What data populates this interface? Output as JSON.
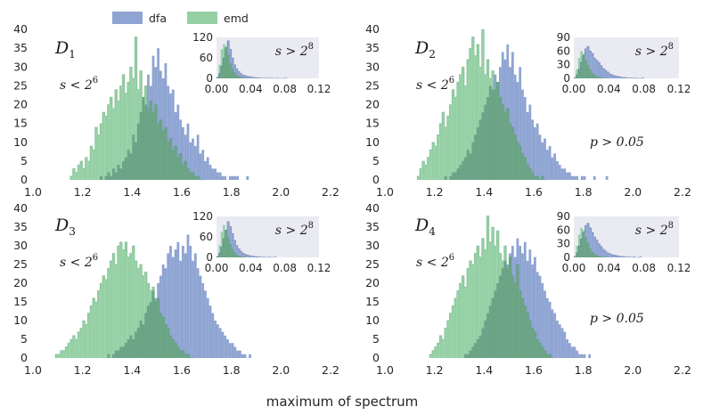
{
  "chart_data": {
    "type": "histogram",
    "xlabel": "maximum of spectrum",
    "legend": [
      {
        "name": "dfa",
        "color": "#8ea4d2"
      },
      {
        "name": "emd",
        "color": "#94d0a4"
      }
    ],
    "colors": {
      "dfa": "#8ea4d2",
      "emd": "#94d0a4",
      "overlap": "#6aa484",
      "inset_bg": "#eaeaf2"
    },
    "x_ticks": [
      "1.0",
      "1.2",
      "1.4",
      "1.6",
      "1.8",
      "2.0",
      "2.2"
    ],
    "y_ticks": [
      "0",
      "5",
      "10",
      "15",
      "20",
      "25",
      "30",
      "35",
      "40"
    ],
    "xlim": [
      1.0,
      2.2
    ],
    "ylim": [
      0,
      40
    ],
    "panels": [
      {
        "name": "D1",
        "label_base": "D",
        "label_sub": "1",
        "scale_text": "s < 2",
        "scale_exp": "6",
        "pvalue_text": "",
        "bin_start": 1.15,
        "bin_width": 0.01,
        "emd": [
          1,
          3,
          2,
          4,
          5,
          3,
          6,
          5,
          9,
          8,
          14,
          12,
          15,
          18,
          17,
          20,
          22,
          19,
          24,
          21,
          25,
          28,
          23,
          26,
          30,
          27,
          38,
          24,
          29,
          22,
          25,
          19,
          21,
          18,
          20,
          15,
          16,
          13,
          14,
          10,
          11,
          8,
          9,
          6,
          7,
          4,
          5,
          3,
          2,
          2,
          1,
          1,
          0,
          0
        ],
        "dfa": [
          0,
          0,
          0,
          0,
          0,
          0,
          0,
          0,
          0,
          0,
          0,
          0,
          1,
          0,
          1,
          2,
          1,
          3,
          2,
          4,
          3,
          5,
          6,
          8,
          7,
          12,
          10,
          15,
          18,
          22,
          20,
          28,
          25,
          33,
          30,
          35,
          29,
          27,
          31,
          25,
          23,
          24,
          18,
          20,
          16,
          14,
          12,
          15,
          10,
          11,
          9,
          12,
          7,
          8,
          5,
          6,
          4,
          3,
          3,
          2,
          2,
          1,
          1,
          0,
          1,
          1,
          1,
          1,
          0,
          0,
          0,
          1,
          0
        ],
        "inset": {
          "scale_text": "s > 2",
          "scale_exp": "8",
          "x_ticks": [
            "0.00",
            "0.04",
            "0.08",
            "0.12"
          ],
          "y_ticks": [
            "0",
            "60",
            "120"
          ],
          "xlim": [
            0,
            0.12
          ],
          "ylim": [
            0,
            120
          ],
          "bin_start": 0.0,
          "bin_width": 0.0025,
          "emd": [
            5,
            40,
            85,
            100,
            95,
            70,
            45,
            30,
            18,
            10,
            6,
            4,
            2,
            1,
            1,
            0
          ],
          "dfa": [
            2,
            15,
            35,
            60,
            90,
            110,
            85,
            60,
            40,
            28,
            20,
            14,
            10,
            8,
            6,
            5,
            4,
            3,
            2,
            2,
            1,
            1,
            1,
            1,
            0,
            1,
            0,
            0,
            1,
            0,
            0,
            0,
            1
          ]
        }
      },
      {
        "name": "D2",
        "label_base": "D",
        "label_sub": "2",
        "scale_text": "s < 2",
        "scale_exp": "6",
        "pvalue_text": "p > 0.05",
        "bin_start": 1.13,
        "bin_width": 0.01,
        "emd": [
          1,
          3,
          5,
          4,
          6,
          8,
          10,
          9,
          12,
          15,
          18,
          14,
          17,
          20,
          24,
          22,
          26,
          28,
          30,
          25,
          32,
          35,
          38,
          33,
          36,
          30,
          40,
          28,
          32,
          27,
          29,
          24,
          26,
          22,
          20,
          18,
          19,
          15,
          14,
          12,
          10,
          9,
          7,
          6,
          4,
          3,
          2,
          1,
          1,
          0,
          1,
          0
        ],
        "dfa": [
          0,
          0,
          0,
          0,
          0,
          0,
          0,
          0,
          0,
          0,
          0,
          1,
          0,
          1,
          2,
          2,
          3,
          4,
          5,
          6,
          8,
          7,
          10,
          12,
          14,
          16,
          18,
          20,
          22,
          25,
          24,
          28,
          26,
          30,
          34,
          32,
          36,
          30,
          34,
          28,
          26,
          30,
          24,
          22,
          18,
          20,
          16,
          14,
          15,
          12,
          10,
          11,
          8,
          9,
          6,
          7,
          5,
          4,
          3,
          3,
          2,
          2,
          1,
          1,
          1,
          0,
          1,
          1,
          0,
          0,
          0,
          1,
          0,
          0,
          0,
          0,
          1
        ],
        "inset": {
          "scale_text": "s > 2",
          "scale_exp": "8",
          "x_ticks": [
            "0.00",
            "0.04",
            "0.08",
            "0.12"
          ],
          "y_ticks": [
            "0",
            "30",
            "60",
            "90"
          ],
          "xlim": [
            0,
            0.12
          ],
          "ylim": [
            0,
            90
          ],
          "bin_start": 0.0,
          "bin_width": 0.0025,
          "emd": [
            2,
            20,
            45,
            60,
            55,
            40,
            30,
            20,
            12,
            8,
            5,
            3,
            2,
            1,
            1,
            0
          ],
          "dfa": [
            1,
            8,
            20,
            35,
            50,
            65,
            70,
            60,
            55,
            45,
            40,
            35,
            28,
            22,
            18,
            14,
            10,
            8,
            6,
            5,
            4,
            3,
            2,
            2,
            1,
            1,
            1,
            0,
            1,
            0,
            0,
            1
          ]
        }
      },
      {
        "name": "D3",
        "label_base": "D",
        "label_sub": "3",
        "scale_text": "s < 2",
        "scale_exp": "6",
        "pvalue_text": "",
        "bin_start": 1.09,
        "bin_width": 0.01,
        "emd": [
          1,
          1,
          2,
          2,
          3,
          4,
          5,
          6,
          5,
          7,
          8,
          10,
          9,
          12,
          14,
          16,
          15,
          18,
          20,
          22,
          21,
          24,
          26,
          28,
          25,
          30,
          31,
          29,
          31,
          27,
          28,
          30,
          26,
          24,
          25,
          22,
          23,
          20,
          18,
          19,
          15,
          16,
          12,
          11,
          9,
          8,
          6,
          5,
          4,
          3,
          2,
          2,
          1,
          1,
          0,
          0
        ],
        "dfa": [
          0,
          0,
          0,
          0,
          0,
          0,
          0,
          0,
          0,
          0,
          0,
          0,
          0,
          0,
          0,
          0,
          0,
          0,
          0,
          0,
          0,
          1,
          0,
          1,
          2,
          2,
          3,
          3,
          4,
          5,
          6,
          5,
          7,
          8,
          10,
          9,
          12,
          14,
          15,
          18,
          16,
          20,
          22,
          25,
          24,
          28,
          30,
          27,
          29,
          31,
          26,
          30,
          28,
          33,
          30,
          26,
          28,
          24,
          22,
          20,
          18,
          16,
          14,
          12,
          10,
          9,
          8,
          7,
          6,
          5,
          4,
          4,
          3,
          2,
          2,
          1,
          1,
          0,
          1,
          0
        ],
        "inset": {
          "scale_text": "s > 2",
          "scale_exp": "8",
          "x_ticks": [
            "0.00",
            "0.04",
            "0.08",
            "0.12"
          ],
          "y_ticks": [
            "0",
            "60",
            "120"
          ],
          "xlim": [
            0,
            0.12
          ],
          "ylim": [
            0,
            120
          ],
          "bin_start": 0.0,
          "bin_width": 0.0025,
          "emd": [
            4,
            35,
            75,
            95,
            80,
            60,
            40,
            25,
            15,
            8,
            5,
            3,
            2,
            1,
            0
          ],
          "dfa": [
            2,
            12,
            30,
            55,
            80,
            105,
            90,
            70,
            50,
            35,
            25,
            18,
            12,
            9,
            7,
            5,
            4,
            3,
            2,
            2,
            1,
            1,
            1,
            0,
            1,
            0,
            0,
            1
          ]
        }
      },
      {
        "name": "D4",
        "label_base": "D",
        "label_sub": "4",
        "scale_text": "s < 2",
        "scale_exp": "6",
        "pvalue_text": "p > 0.05",
        "bin_start": 1.18,
        "bin_width": 0.01,
        "emd": [
          1,
          2,
          3,
          4,
          6,
          5,
          8,
          10,
          12,
          14,
          16,
          18,
          20,
          22,
          19,
          24,
          26,
          25,
          28,
          30,
          27,
          32,
          29,
          38,
          31,
          35,
          30,
          34,
          28,
          26,
          30,
          24,
          27,
          22,
          20,
          25,
          18,
          16,
          14,
          12,
          10,
          8,
          7,
          5,
          4,
          3,
          2,
          1,
          1,
          0
        ],
        "dfa": [
          0,
          0,
          0,
          0,
          0,
          0,
          0,
          0,
          0,
          0,
          0,
          0,
          0,
          0,
          1,
          1,
          2,
          3,
          4,
          5,
          6,
          8,
          10,
          12,
          14,
          16,
          18,
          20,
          22,
          24,
          26,
          25,
          28,
          30,
          27,
          32,
          30,
          28,
          31,
          26,
          29,
          25,
          27,
          23,
          22,
          20,
          18,
          16,
          15,
          13,
          12,
          10,
          9,
          8,
          7,
          5,
          4,
          3,
          3,
          2,
          1,
          1,
          1,
          0,
          1
        ],
        "inset": {
          "scale_text": "s > 2",
          "scale_exp": "8",
          "x_ticks": [
            "0.00",
            "0.04",
            "0.08",
            "0.12"
          ],
          "y_ticks": [
            "0",
            "30",
            "60",
            "90"
          ],
          "xlim": [
            0,
            0.12
          ],
          "ylim": [
            0,
            90
          ],
          "bin_start": 0.0,
          "bin_width": 0.0025,
          "emd": [
            3,
            25,
            50,
            65,
            60,
            45,
            32,
            20,
            12,
            8,
            5,
            3,
            2,
            1,
            1,
            0
          ],
          "dfa": [
            1,
            10,
            25,
            40,
            55,
            70,
            75,
            65,
            55,
            45,
            38,
            30,
            24,
            18,
            14,
            10,
            8,
            6,
            5,
            4,
            3,
            2,
            2,
            1,
            1,
            1,
            0,
            1,
            0,
            0,
            1
          ]
        }
      }
    ]
  }
}
